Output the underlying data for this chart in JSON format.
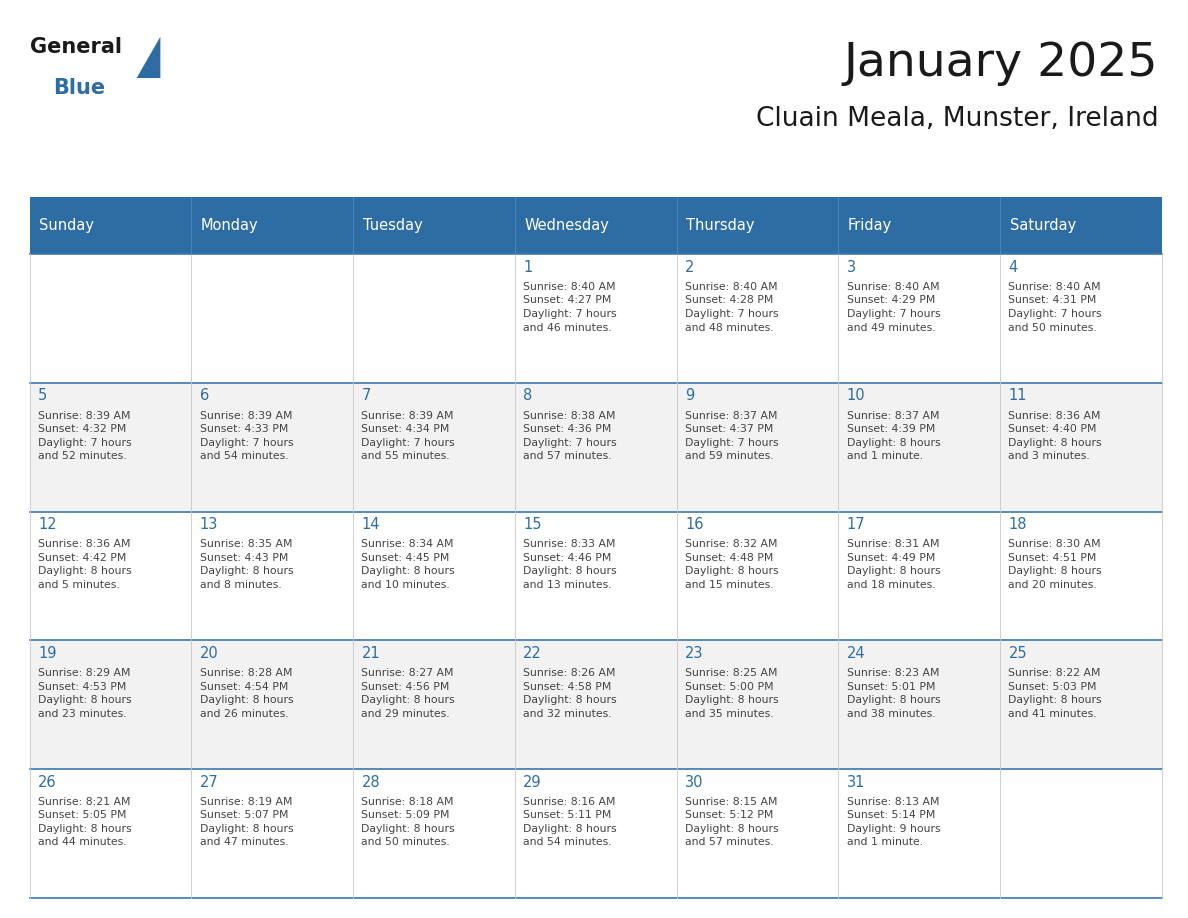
{
  "title": "January 2025",
  "subtitle": "Cluain Meala, Munster, Ireland",
  "header_bg": "#2E6DA4",
  "header_text": "#FFFFFF",
  "cell_bg_odd": "#FFFFFF",
  "cell_bg_even": "#F2F2F2",
  "day_number_color": "#2E6DA4",
  "info_text_color": "#444444",
  "line_color": "#3B78B0",
  "days_of_week": [
    "Sunday",
    "Monday",
    "Tuesday",
    "Wednesday",
    "Thursday",
    "Friday",
    "Saturday"
  ],
  "weeks": [
    [
      {
        "day": "",
        "info": ""
      },
      {
        "day": "",
        "info": ""
      },
      {
        "day": "",
        "info": ""
      },
      {
        "day": "1",
        "info": "Sunrise: 8:40 AM\nSunset: 4:27 PM\nDaylight: 7 hours\nand 46 minutes."
      },
      {
        "day": "2",
        "info": "Sunrise: 8:40 AM\nSunset: 4:28 PM\nDaylight: 7 hours\nand 48 minutes."
      },
      {
        "day": "3",
        "info": "Sunrise: 8:40 AM\nSunset: 4:29 PM\nDaylight: 7 hours\nand 49 minutes."
      },
      {
        "day": "4",
        "info": "Sunrise: 8:40 AM\nSunset: 4:31 PM\nDaylight: 7 hours\nand 50 minutes."
      }
    ],
    [
      {
        "day": "5",
        "info": "Sunrise: 8:39 AM\nSunset: 4:32 PM\nDaylight: 7 hours\nand 52 minutes."
      },
      {
        "day": "6",
        "info": "Sunrise: 8:39 AM\nSunset: 4:33 PM\nDaylight: 7 hours\nand 54 minutes."
      },
      {
        "day": "7",
        "info": "Sunrise: 8:39 AM\nSunset: 4:34 PM\nDaylight: 7 hours\nand 55 minutes."
      },
      {
        "day": "8",
        "info": "Sunrise: 8:38 AM\nSunset: 4:36 PM\nDaylight: 7 hours\nand 57 minutes."
      },
      {
        "day": "9",
        "info": "Sunrise: 8:37 AM\nSunset: 4:37 PM\nDaylight: 7 hours\nand 59 minutes."
      },
      {
        "day": "10",
        "info": "Sunrise: 8:37 AM\nSunset: 4:39 PM\nDaylight: 8 hours\nand 1 minute."
      },
      {
        "day": "11",
        "info": "Sunrise: 8:36 AM\nSunset: 4:40 PM\nDaylight: 8 hours\nand 3 minutes."
      }
    ],
    [
      {
        "day": "12",
        "info": "Sunrise: 8:36 AM\nSunset: 4:42 PM\nDaylight: 8 hours\nand 5 minutes."
      },
      {
        "day": "13",
        "info": "Sunrise: 8:35 AM\nSunset: 4:43 PM\nDaylight: 8 hours\nand 8 minutes."
      },
      {
        "day": "14",
        "info": "Sunrise: 8:34 AM\nSunset: 4:45 PM\nDaylight: 8 hours\nand 10 minutes."
      },
      {
        "day": "15",
        "info": "Sunrise: 8:33 AM\nSunset: 4:46 PM\nDaylight: 8 hours\nand 13 minutes."
      },
      {
        "day": "16",
        "info": "Sunrise: 8:32 AM\nSunset: 4:48 PM\nDaylight: 8 hours\nand 15 minutes."
      },
      {
        "day": "17",
        "info": "Sunrise: 8:31 AM\nSunset: 4:49 PM\nDaylight: 8 hours\nand 18 minutes."
      },
      {
        "day": "18",
        "info": "Sunrise: 8:30 AM\nSunset: 4:51 PM\nDaylight: 8 hours\nand 20 minutes."
      }
    ],
    [
      {
        "day": "19",
        "info": "Sunrise: 8:29 AM\nSunset: 4:53 PM\nDaylight: 8 hours\nand 23 minutes."
      },
      {
        "day": "20",
        "info": "Sunrise: 8:28 AM\nSunset: 4:54 PM\nDaylight: 8 hours\nand 26 minutes."
      },
      {
        "day": "21",
        "info": "Sunrise: 8:27 AM\nSunset: 4:56 PM\nDaylight: 8 hours\nand 29 minutes."
      },
      {
        "day": "22",
        "info": "Sunrise: 8:26 AM\nSunset: 4:58 PM\nDaylight: 8 hours\nand 32 minutes."
      },
      {
        "day": "23",
        "info": "Sunrise: 8:25 AM\nSunset: 5:00 PM\nDaylight: 8 hours\nand 35 minutes."
      },
      {
        "day": "24",
        "info": "Sunrise: 8:23 AM\nSunset: 5:01 PM\nDaylight: 8 hours\nand 38 minutes."
      },
      {
        "day": "25",
        "info": "Sunrise: 8:22 AM\nSunset: 5:03 PM\nDaylight: 8 hours\nand 41 minutes."
      }
    ],
    [
      {
        "day": "26",
        "info": "Sunrise: 8:21 AM\nSunset: 5:05 PM\nDaylight: 8 hours\nand 44 minutes."
      },
      {
        "day": "27",
        "info": "Sunrise: 8:19 AM\nSunset: 5:07 PM\nDaylight: 8 hours\nand 47 minutes."
      },
      {
        "day": "28",
        "info": "Sunrise: 8:18 AM\nSunset: 5:09 PM\nDaylight: 8 hours\nand 50 minutes."
      },
      {
        "day": "29",
        "info": "Sunrise: 8:16 AM\nSunset: 5:11 PM\nDaylight: 8 hours\nand 54 minutes."
      },
      {
        "day": "30",
        "info": "Sunrise: 8:15 AM\nSunset: 5:12 PM\nDaylight: 8 hours\nand 57 minutes."
      },
      {
        "day": "31",
        "info": "Sunrise: 8:13 AM\nSunset: 5:14 PM\nDaylight: 9 hours\nand 1 minute."
      },
      {
        "day": "",
        "info": ""
      }
    ]
  ],
  "logo_general_color": "#1a1a1a",
  "logo_blue_color": "#2E6DA4",
  "logo_triangle_color": "#2E6DA4"
}
